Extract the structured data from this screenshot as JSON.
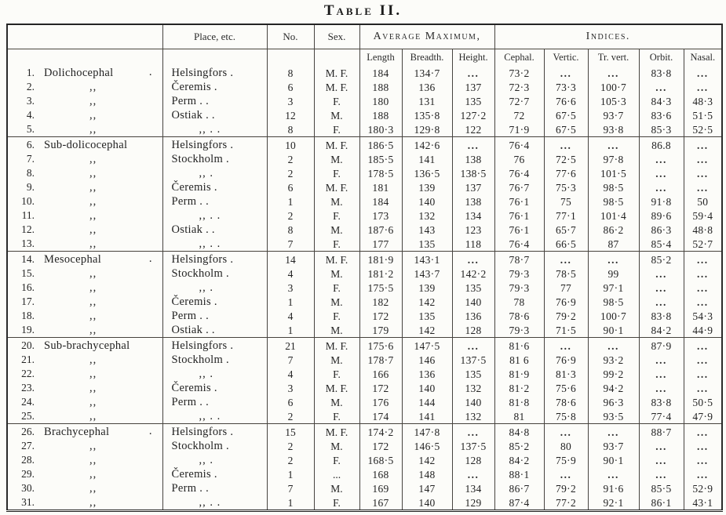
{
  "title": "Table II.",
  "colors": {
    "ink": "#212121",
    "paper": "#fcfcf9",
    "rule": "#46423c"
  },
  "header": {
    "place": "Place, etc.",
    "no": "No.",
    "sex": "Sex.",
    "avg_max": "Average Maximum,",
    "indices": "Indices.",
    "sub": {
      "length": "Length",
      "breadth": "Breadth.",
      "height": "Height.",
      "cephal": "Cephal.",
      "vertic": "Vertic.",
      "trvert": "Tr. vert.",
      "orbit": "Orbit.",
      "nasal": "Nasal."
    }
  },
  "rows": [
    {
      "num": "1.",
      "label": "Dolichocephal",
      "label_dot": ".",
      "place": "Helsingfors .",
      "no": "8",
      "sex": "M. F.",
      "length": "184",
      "breadth": "134·7",
      "height": "...",
      "cephal": "73·2",
      "vertic": "...",
      "trvert": "...",
      "orbit": "83·8",
      "nasal": "..."
    },
    {
      "num": "2.",
      "label": ",,",
      "label_dot": "",
      "place": "Čeremis .",
      "no": "6",
      "sex": "M. F.",
      "length": "188",
      "breadth": "136",
      "height": "137",
      "cephal": "72·3",
      "vertic": "73·3",
      "trvert": "100·7",
      "orbit": "...",
      "nasal": "..."
    },
    {
      "num": "3.",
      "label": ",,",
      "label_dot": "",
      "place": "Perm . .",
      "no": "3",
      "sex": "F.",
      "length": "180",
      "breadth": "131",
      "height": "135",
      "cephal": "72·7",
      "vertic": "76·6",
      "trvert": "105·3",
      "orbit": "84·3",
      "nasal": "48·3"
    },
    {
      "num": "4.",
      "label": ",,",
      "label_dot": "",
      "place": "Ostiak . .",
      "no": "12",
      "sex": "M.",
      "length": "188",
      "breadth": "135·8",
      "height": "127·2",
      "cephal": "72",
      "vertic": "67·5",
      "trvert": "93·7",
      "orbit": "83·6",
      "nasal": "51·5"
    },
    {
      "num": "5.",
      "label": ",,",
      "label_dot": "",
      "place": ",, . .",
      "no": "8",
      "sex": "F.",
      "length": "180·3",
      "breadth": "129·8",
      "height": "122",
      "cephal": "71·9",
      "vertic": "67·5",
      "trvert": "93·8",
      "orbit": "85·3",
      "nasal": "52·5"
    },
    {
      "num": "6.",
      "label": "Sub-dolicocephal",
      "label_dot": "",
      "place": "Helsingfors .",
      "no": "10",
      "sex": "M. F.",
      "length": "186·5",
      "breadth": "142·6",
      "height": "...",
      "cephal": "76·4",
      "vertic": "...",
      "trvert": "...",
      "orbit": "86.8",
      "nasal": "..."
    },
    {
      "num": "7.",
      "label": ",,",
      "label_dot": "",
      "place": "Stockholm .",
      "no": "2",
      "sex": "M.",
      "length": "185·5",
      "breadth": "141",
      "height": "138",
      "cephal": "76",
      "vertic": "72·5",
      "trvert": "97·8",
      "orbit": "...",
      "nasal": "..."
    },
    {
      "num": "8.",
      "label": ",,",
      "label_dot": "",
      "place": ",, .",
      "no": "2",
      "sex": "F.",
      "length": "178·5",
      "breadth": "136·5",
      "height": "138·5",
      "cephal": "76·4",
      "vertic": "77·6",
      "trvert": "101·5",
      "orbit": "...",
      "nasal": "..."
    },
    {
      "num": "9.",
      "label": ",,",
      "label_dot": "",
      "place": "Čeremis .",
      "no": "6",
      "sex": "M. F.",
      "length": "181",
      "breadth": "139",
      "height": "137",
      "cephal": "76·7",
      "vertic": "75·3",
      "trvert": "98·5",
      "orbit": "...",
      "nasal": "..."
    },
    {
      "num": "10.",
      "label": ",,",
      "label_dot": "",
      "place": "Perm . .",
      "no": "1",
      "sex": "M.",
      "length": "184",
      "breadth": "140",
      "height": "138",
      "cephal": "76·1",
      "vertic": "75",
      "trvert": "98·5",
      "orbit": "91·8",
      "nasal": "50"
    },
    {
      "num": "11.",
      "label": ",,",
      "label_dot": "",
      "place": ",, . .",
      "no": "2",
      "sex": "F.",
      "length": "173",
      "breadth": "132",
      "height": "134",
      "cephal": "76·1",
      "vertic": "77·1",
      "trvert": "101·4",
      "orbit": "89·6",
      "nasal": "59·4"
    },
    {
      "num": "12.",
      "label": ",,",
      "label_dot": "",
      "place": "Ostiak . .",
      "no": "8",
      "sex": "M.",
      "length": "187·6",
      "breadth": "143",
      "height": "123",
      "cephal": "76·1",
      "vertic": "65·7",
      "trvert": "86·2",
      "orbit": "86·3",
      "nasal": "48·8"
    },
    {
      "num": "13.",
      "label": ",,",
      "label_dot": "",
      "place": ",, . .",
      "no": "7",
      "sex": "F.",
      "length": "177",
      "breadth": "135",
      "height": "118",
      "cephal": "76·4",
      "vertic": "66·5",
      "trvert": "87",
      "orbit": "85·4",
      "nasal": "52·7"
    },
    {
      "num": "14.",
      "label": "Mesocephal",
      "label_dot": ".",
      "place": "Helsingfors .",
      "no": "14",
      "sex": "M. F.",
      "length": "181·9",
      "breadth": "143·1",
      "height": "...",
      "cephal": "78·7",
      "vertic": "...",
      "trvert": "...",
      "orbit": "85·2",
      "nasal": "..."
    },
    {
      "num": "15.",
      "label": ",,",
      "label_dot": "",
      "place": "Stockholm .",
      "no": "4",
      "sex": "M.",
      "length": "181·2",
      "breadth": "143·7",
      "height": "142·2",
      "cephal": "79·3",
      "vertic": "78·5",
      "trvert": "99",
      "orbit": "...",
      "nasal": "..."
    },
    {
      "num": "16.",
      "label": ",,",
      "label_dot": "",
      "place": ",, .",
      "no": "3",
      "sex": "F.",
      "length": "175·5",
      "breadth": "139",
      "height": "135",
      "cephal": "79·3",
      "vertic": "77",
      "trvert": "97·1",
      "orbit": "...",
      "nasal": "..."
    },
    {
      "num": "17.",
      "label": ",,",
      "label_dot": "",
      "place": "Čeremis .",
      "no": "1",
      "sex": "M.",
      "length": "182",
      "breadth": "142",
      "height": "140",
      "cephal": "78",
      "vertic": "76·9",
      "trvert": "98·5",
      "orbit": "...",
      "nasal": "..."
    },
    {
      "num": "18.",
      "label": ",,",
      "label_dot": "",
      "place": "Perm . .",
      "no": "4",
      "sex": "F.",
      "length": "172",
      "breadth": "135",
      "height": "136",
      "cephal": "78·6",
      "vertic": "79·2",
      "trvert": "100·7",
      "orbit": "83·8",
      "nasal": "54·3"
    },
    {
      "num": "19.",
      "label": ",,",
      "label_dot": "",
      "place": "Ostiak . .",
      "no": "1",
      "sex": "M.",
      "length": "179",
      "breadth": "142",
      "height": "128",
      "cephal": "79·3",
      "vertic": "71·5",
      "trvert": "90·1",
      "orbit": "84·2",
      "nasal": "44·9"
    },
    {
      "num": "20.",
      "label": "Sub-brachycephal",
      "label_dot": "",
      "place": "Helsingfors .",
      "no": "21",
      "sex": "M. F.",
      "length": "175·6",
      "breadth": "147·5",
      "height": "...",
      "cephal": "81·6",
      "vertic": "...",
      "trvert": "...",
      "orbit": "87·9",
      "nasal": "..."
    },
    {
      "num": "21.",
      "label": ",,",
      "label_dot": "",
      "place": "Stockholm .",
      "no": "7",
      "sex": "M.",
      "length": "178·7",
      "breadth": "146",
      "height": "137·5",
      "cephal": "81 6",
      "vertic": "76·9",
      "trvert": "93·2",
      "orbit": "...",
      "nasal": "..."
    },
    {
      "num": "22.",
      "label": ",,",
      "label_dot": "",
      "place": ",, .",
      "no": "4",
      "sex": "F.",
      "length": "166",
      "breadth": "136",
      "height": "135",
      "cephal": "81·9",
      "vertic": "81·3",
      "trvert": "99·2",
      "orbit": "...",
      "nasal": "..."
    },
    {
      "num": "23.",
      "label": ",,",
      "label_dot": "",
      "place": "Čeremis .",
      "no": "3",
      "sex": "M. F.",
      "length": "172",
      "breadth": "140",
      "height": "132",
      "cephal": "81·2",
      "vertic": "75·6",
      "trvert": "94·2",
      "orbit": "...",
      "nasal": "..."
    },
    {
      "num": "24.",
      "label": ",,",
      "label_dot": "",
      "place": "Perm . .",
      "no": "6",
      "sex": "M.",
      "length": "176",
      "breadth": "144",
      "height": "140",
      "cephal": "81·8",
      "vertic": "78·6",
      "trvert": "96·3",
      "orbit": "83·8",
      "nasal": "50·5"
    },
    {
      "num": "25.",
      "label": ",,",
      "label_dot": "",
      "place": ",, . .",
      "no": "2",
      "sex": "F.",
      "length": "174",
      "breadth": "141",
      "height": "132",
      "cephal": "81",
      "vertic": "75·8",
      "trvert": "93·5",
      "orbit": "77·4",
      "nasal": "47·9"
    },
    {
      "num": "26.",
      "label": "Brachycephal",
      "label_dot": ".",
      "place": "Helsingfors .",
      "no": "15",
      "sex": "M. F.",
      "length": "174·2",
      "breadth": "147·8",
      "height": "...",
      "cephal": "84·8",
      "vertic": "...",
      "trvert": "...",
      "orbit": "88·7",
      "nasal": "..."
    },
    {
      "num": "27.",
      "label": ",,",
      "label_dot": "",
      "place": "Stockholm .",
      "no": "2",
      "sex": "M.",
      "length": "172",
      "breadth": "146·5",
      "height": "137·5",
      "cephal": "85·2",
      "vertic": "80",
      "trvert": "93·7",
      "orbit": "...",
      "nasal": "..."
    },
    {
      "num": "28.",
      "label": ",,",
      "label_dot": "",
      "place": ",, .",
      "no": "2",
      "sex": "F.",
      "length": "168·5",
      "breadth": "142",
      "height": "128",
      "cephal": "84·2",
      "vertic": "75·9",
      "trvert": "90·1",
      "orbit": "...",
      "nasal": "..."
    },
    {
      "num": "29.",
      "label": ",,",
      "label_dot": "",
      "place": "Čeremis .",
      "no": "1",
      "sex": "...",
      "length": "168",
      "breadth": "148",
      "height": "...",
      "cephal": "88·1",
      "vertic": "...",
      "trvert": "...",
      "orbit": "...",
      "nasal": "..."
    },
    {
      "num": "30.",
      "label": ",,",
      "label_dot": "",
      "place": "Perm . .",
      "no": "7",
      "sex": "M.",
      "length": "169",
      "breadth": "147",
      "height": "134",
      "cephal": "86·7",
      "vertic": "79·2",
      "trvert": "91·6",
      "orbit": "85·5",
      "nasal": "52·9"
    },
    {
      "num": "31.",
      "label": ",,",
      "label_dot": "",
      "place": ",, . .",
      "no": "1",
      "sex": "F.",
      "length": "167",
      "breadth": "140",
      "height": "129",
      "cephal": "87·4",
      "vertic": "77·2",
      "trvert": "92·1",
      "orbit": "86·1",
      "nasal": "43·1"
    }
  ]
}
